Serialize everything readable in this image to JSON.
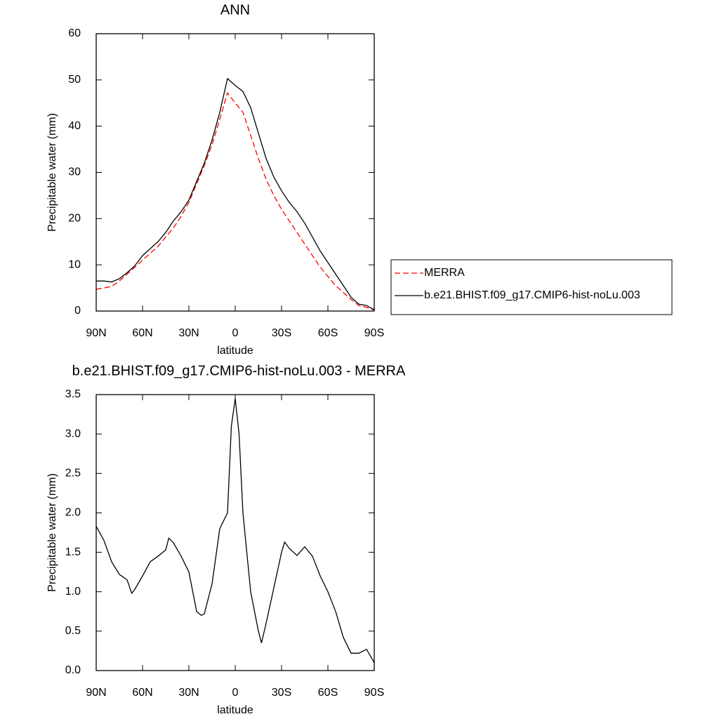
{
  "chart_data": [
    {
      "type": "line",
      "title": "ANN",
      "xlabel": "latitude",
      "ylabel": "Precipitable water (mm)",
      "x": [
        90,
        85,
        80,
        75,
        70,
        65,
        60,
        55,
        50,
        45,
        40,
        35,
        30,
        25,
        20,
        15,
        10,
        5,
        0,
        -5,
        -10,
        -15,
        -20,
        -25,
        -30,
        -35,
        -40,
        -45,
        -50,
        -55,
        -60,
        -65,
        -70,
        -75,
        -80,
        -85,
        -90
      ],
      "series": [
        {
          "name": "MERRA",
          "color": "#ff0000",
          "dashed": true,
          "values": [
            4.7,
            5,
            5.3,
            6.5,
            8,
            9.5,
            11,
            12.5,
            14,
            16,
            18,
            20.5,
            23.5,
            27.5,
            31.5,
            36,
            41.5,
            47.2,
            45,
            43,
            38,
            33,
            28.5,
            25,
            22,
            19.5,
            17,
            14.5,
            12,
            9.5,
            7.5,
            5.5,
            4,
            2.5,
            1.2,
            0.8,
            0.2
          ]
        },
        {
          "name": "b.e21.BHIST.f09_g17.CMIP6-hist-noLu.003",
          "color": "#000000",
          "dashed": false,
          "values": [
            6.5,
            6.5,
            6.3,
            7,
            8.3,
            9.8,
            12,
            13.5,
            15,
            17,
            19.5,
            21.5,
            24,
            28,
            32,
            37,
            43,
            50.3,
            48.8,
            47.5,
            44,
            38.5,
            33,
            29,
            26,
            23.5,
            21.5,
            19,
            16,
            13,
            10.5,
            8,
            5.5,
            3,
            1.5,
            1.2,
            0.3
          ]
        }
      ],
      "xlim": [
        90,
        -90
      ],
      "xticks": [
        {
          "value": 90,
          "label": "90N"
        },
        {
          "value": 60,
          "label": "60N"
        },
        {
          "value": 30,
          "label": "30N"
        },
        0,
        {
          "value": -30,
          "label": "30S"
        },
        {
          "value": -60,
          "label": "60S"
        },
        {
          "value": -90,
          "label": "90S"
        }
      ],
      "ylim": [
        0,
        60
      ],
      "yticks": [
        0,
        10,
        20,
        30,
        40,
        50,
        60
      ],
      "legend": "right"
    },
    {
      "type": "line",
      "title": "b.e21.BHIST.f09_g17.CMIP6-hist-noLu.003 - MERRA",
      "xlabel": "latitude",
      "ylabel": "Precipitable water (mm)",
      "x": [
        90,
        85,
        80,
        75,
        70,
        67,
        65,
        60,
        55,
        50,
        45,
        43,
        40,
        35,
        30,
        25,
        22,
        20,
        15,
        10,
        5,
        2.5,
        0,
        -2.5,
        -5,
        -10,
        -15,
        -17,
        -20,
        -25,
        -30,
        -32,
        -35,
        -40,
        -45,
        -50,
        -55,
        -60,
        -65,
        -70,
        -75,
        -80,
        -85,
        -90
      ],
      "values": [
        1.83,
        1.65,
        1.38,
        1.22,
        1.15,
        0.98,
        1.03,
        1.2,
        1.38,
        1.45,
        1.53,
        1.68,
        1.62,
        1.45,
        1.25,
        0.75,
        0.7,
        0.72,
        1.1,
        1.8,
        2.0,
        3.1,
        3.45,
        3.0,
        2.0,
        1.0,
        0.5,
        0.35,
        0.6,
        1.05,
        1.5,
        1.63,
        1.55,
        1.46,
        1.57,
        1.45,
        1.2,
        1.0,
        0.75,
        0.42,
        0.22,
        0.22,
        0.27,
        0.1
      ],
      "color": "#000000",
      "xlim": [
        90,
        -90
      ],
      "xticks": [
        {
          "value": 90,
          "label": "90N"
        },
        {
          "value": 60,
          "label": "60N"
        },
        {
          "value": 30,
          "label": "30N"
        },
        0,
        {
          "value": -30,
          "label": "30S"
        },
        {
          "value": -60,
          "label": "60S"
        },
        {
          "value": -90,
          "label": "90S"
        }
      ],
      "ylim": [
        0,
        3.5
      ],
      "yticks": [
        {
          "value": 0,
          "label": "0.0"
        },
        0.5,
        {
          "value": 1,
          "label": "1.0"
        },
        1.5,
        {
          "value": 2,
          "label": "2.0"
        },
        2.5,
        {
          "value": 3,
          "label": "3.0"
        },
        3.5
      ]
    }
  ]
}
